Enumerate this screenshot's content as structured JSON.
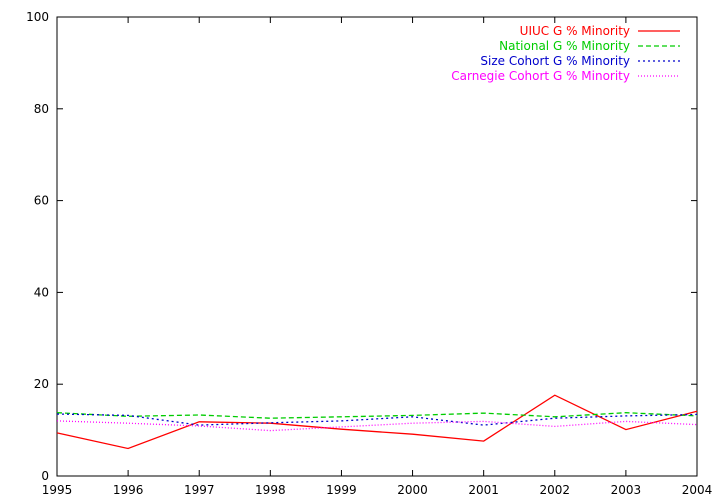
{
  "chart_data": {
    "type": "line",
    "x": [
      1995,
      1996,
      1997,
      1998,
      1999,
      2000,
      2001,
      2002,
      2003,
      2004
    ],
    "xlim": [
      1995,
      2004
    ],
    "ylim": [
      0,
      100
    ],
    "x_ticks": [
      "1995",
      "1996",
      "1997",
      "1998",
      "1999",
      "2000",
      "2001",
      "2002",
      "2003",
      "2004"
    ],
    "y_ticks": [
      "0",
      "20",
      "40",
      "60",
      "80",
      "100"
    ],
    "grid": false,
    "legend_position": "top-right",
    "series": [
      {
        "name": "UIUC G % Minority",
        "color": "#ff0000",
        "style": "solid",
        "values": [
          9.4,
          6.0,
          11.8,
          11.5,
          10.2,
          9.1,
          7.6,
          17.6,
          10.1,
          14.1
        ]
      },
      {
        "name": "National G % Minority",
        "color": "#00cc00",
        "style": "dashed",
        "values": [
          13.8,
          13.0,
          13.3,
          12.6,
          12.9,
          13.2,
          13.7,
          12.9,
          13.8,
          13.1
        ]
      },
      {
        "name": "Size Cohort G % Minority",
        "color": "#0000cc",
        "style": "dotted",
        "values": [
          13.5,
          13.2,
          11.1,
          11.6,
          12.0,
          12.9,
          11.1,
          12.6,
          13.1,
          13.4
        ]
      },
      {
        "name": "Carnegie Cohort G % Minority",
        "color": "#ff00ff",
        "style": "fine-dotted",
        "values": [
          12.0,
          11.5,
          10.9,
          9.9,
          10.7,
          11.5,
          11.9,
          10.8,
          11.9,
          11.2
        ]
      }
    ]
  }
}
